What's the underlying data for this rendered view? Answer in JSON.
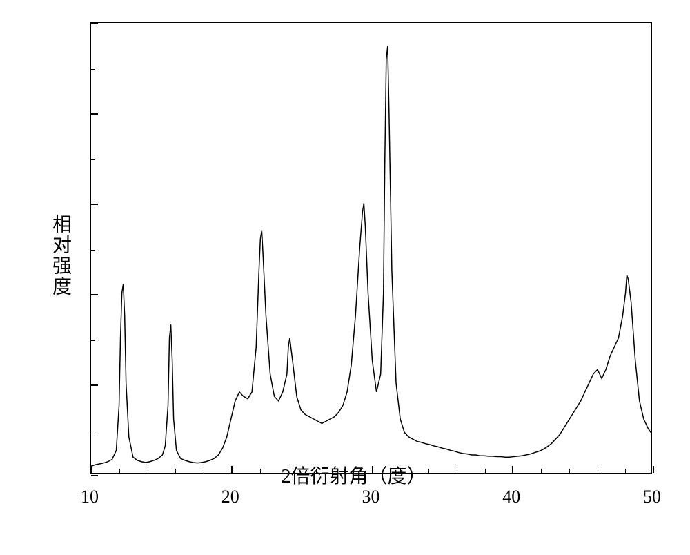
{
  "chart": {
    "type": "line",
    "xlabel": "2倍衍射角（度）",
    "ylabel": "相对强度",
    "xlim": [
      10,
      50
    ],
    "ylim": [
      0,
      100
    ],
    "x_ticks": [
      10,
      20,
      30,
      40,
      50
    ],
    "x_tick_labels": [
      "10",
      "20",
      "30",
      "40",
      "50"
    ],
    "x_minor_step": 2,
    "y_major_count": 5,
    "y_minor_count": 10,
    "line_color": "#000000",
    "line_width": 1.5,
    "background_color": "#ffffff",
    "border_color": "#000000",
    "label_fontsize": 28,
    "tick_fontsize": 26,
    "series": {
      "x": [
        10.0,
        10.3,
        10.6,
        10.9,
        11.2,
        11.5,
        11.8,
        12.0,
        12.1,
        12.2,
        12.3,
        12.4,
        12.5,
        12.7,
        13.0,
        13.3,
        13.6,
        13.9,
        14.2,
        14.5,
        14.8,
        15.1,
        15.3,
        15.5,
        15.6,
        15.7,
        15.8,
        15.9,
        16.1,
        16.4,
        16.7,
        17.0,
        17.3,
        17.6,
        17.9,
        18.2,
        18.5,
        18.8,
        19.1,
        19.4,
        19.7,
        20.0,
        20.3,
        20.6,
        20.9,
        21.2,
        21.5,
        21.8,
        22.0,
        22.1,
        22.2,
        22.3,
        22.5,
        22.8,
        23.1,
        23.4,
        23.7,
        24.0,
        24.1,
        24.2,
        24.4,
        24.7,
        25.0,
        25.3,
        25.6,
        25.9,
        26.2,
        26.5,
        26.8,
        27.1,
        27.4,
        27.7,
        28.0,
        28.3,
        28.6,
        28.9,
        29.2,
        29.4,
        29.5,
        29.6,
        29.8,
        30.1,
        30.4,
        30.7,
        30.9,
        31.0,
        31.1,
        31.2,
        31.3,
        31.5,
        31.8,
        32.1,
        32.4,
        32.7,
        33.0,
        33.3,
        33.6,
        33.9,
        34.2,
        34.5,
        34.8,
        35.1,
        35.4,
        35.7,
        36.0,
        36.3,
        36.6,
        36.9,
        37.2,
        37.5,
        37.8,
        38.1,
        38.4,
        38.7,
        39.0,
        39.3,
        39.6,
        39.9,
        40.2,
        40.5,
        40.8,
        41.1,
        41.4,
        41.7,
        42.0,
        42.3,
        42.6,
        42.9,
        43.2,
        43.5,
        43.8,
        44.1,
        44.4,
        44.7,
        45.0,
        45.3,
        45.6,
        45.9,
        46.2,
        46.5,
        46.8,
        47.1,
        47.4,
        47.7,
        48.0,
        48.2,
        48.3,
        48.4,
        48.6,
        48.9,
        49.2,
        49.5,
        49.8,
        50.0
      ],
      "y": [
        1.5,
        1.8,
        2.0,
        2.2,
        2.5,
        3.0,
        5.0,
        15.0,
        30.0,
        40.0,
        42.0,
        35.0,
        20.0,
        8.0,
        3.5,
        2.8,
        2.5,
        2.3,
        2.5,
        2.8,
        3.2,
        4.0,
        6.0,
        15.0,
        30.0,
        33.0,
        25.0,
        12.0,
        5.0,
        3.2,
        2.8,
        2.5,
        2.3,
        2.2,
        2.3,
        2.5,
        2.8,
        3.2,
        4.0,
        5.5,
        8.0,
        12.0,
        16.0,
        18.0,
        17.0,
        16.5,
        18.0,
        28.0,
        45.0,
        52.0,
        54.0,
        48.0,
        35.0,
        22.0,
        17.0,
        16.0,
        18.0,
        22.0,
        28.0,
        30.0,
        25.0,
        17.0,
        14.0,
        13.0,
        12.5,
        12.0,
        11.5,
        11.0,
        11.5,
        12.0,
        12.5,
        13.5,
        15.0,
        18.0,
        24.0,
        35.0,
        50.0,
        58.0,
        60.0,
        55.0,
        40.0,
        25.0,
        18.0,
        22.0,
        40.0,
        70.0,
        92.0,
        95.0,
        80.0,
        45.0,
        20.0,
        12.0,
        9.0,
        8.0,
        7.5,
        7.0,
        6.8,
        6.5,
        6.3,
        6.0,
        5.8,
        5.5,
        5.3,
        5.0,
        4.8,
        4.5,
        4.3,
        4.2,
        4.0,
        4.0,
        3.8,
        3.8,
        3.7,
        3.7,
        3.6,
        3.6,
        3.5,
        3.5,
        3.6,
        3.7,
        3.8,
        4.0,
        4.2,
        4.5,
        4.8,
        5.2,
        5.8,
        6.5,
        7.5,
        8.5,
        10.0,
        11.5,
        13.0,
        14.5,
        16.0,
        18.0,
        20.0,
        22.0,
        23.0,
        21.0,
        23.0,
        26.0,
        28.0,
        30.0,
        35.0,
        40.0,
        44.0,
        43.0,
        38.0,
        25.0,
        16.0,
        12.0,
        10.0,
        9.0
      ]
    }
  }
}
